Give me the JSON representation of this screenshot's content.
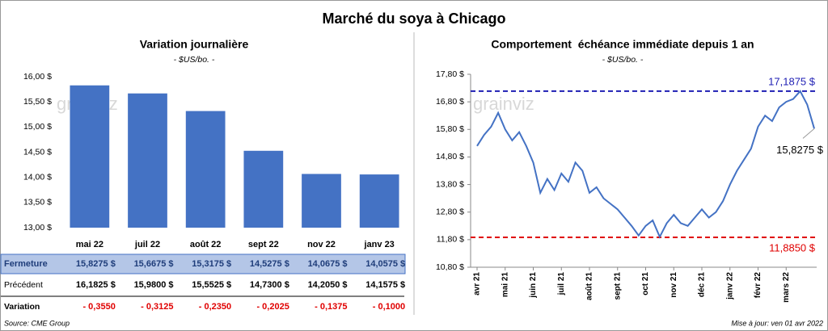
{
  "title": "Marché du soya à Chicago",
  "source": "Source: CME Group",
  "updated": "Mise à jour: ven 01 avr 2022",
  "watermark": "grainviz",
  "chart_data": [
    {
      "type": "bar",
      "title": "Variation journalière",
      "subtitle": "- $US/bo. -",
      "categories": [
        "mai 22",
        "juil 22",
        "août 22",
        "sept 22",
        "nov 22",
        "janv 23"
      ],
      "series": [
        {
          "name": "Fermeture",
          "color": "#4472c4",
          "values": [
            15.8275,
            15.6675,
            15.3175,
            14.5275,
            14.0675,
            14.0575
          ],
          "value_labels": [
            "15,8275 $",
            "15,6675 $",
            "15,3175 $",
            "14,5275 $",
            "14,0675 $",
            "14,0575 $"
          ]
        }
      ],
      "ylim": [
        13,
        16
      ],
      "yticks": [
        {
          "value": 13,
          "label": "13,00 $"
        },
        {
          "value": 13.5,
          "label": "13,50 $"
        },
        {
          "value": 14,
          "label": "14,00 $"
        },
        {
          "value": 14.5,
          "label": "14,50 $"
        },
        {
          "value": 15,
          "label": "15,00 $"
        },
        {
          "value": 15.5,
          "label": "15,50 $"
        },
        {
          "value": 16,
          "label": "16,00 $"
        }
      ],
      "table": [
        {
          "name": "Précédent",
          "color": "#000000",
          "cells": [
            "16,1825 $",
            "15,9800 $",
            "15,5525 $",
            "14,7300 $",
            "14,2050 $",
            "14,1575 $"
          ]
        },
        {
          "name": "Variation",
          "color": "#e00000",
          "cells": [
            "- 0,3550",
            "- 0,3125",
            "- 0,2350",
            "- 0,2025",
            "- 0,1375",
            "- 0,1000"
          ]
        }
      ]
    },
    {
      "type": "line",
      "title": "Comportement  échéance immédiate depuis 1 an",
      "subtitle": "- $US/bo. -",
      "color": "#4472c4",
      "categories": [
        "avr 21",
        null,
        null,
        null,
        "mai 21",
        null,
        null,
        null,
        "juin 21",
        null,
        null,
        null,
        "juil 21",
        null,
        null,
        null,
        "août 21",
        null,
        null,
        null,
        "sept 21",
        null,
        null,
        null,
        "oct 21",
        null,
        null,
        null,
        "nov 21",
        null,
        null,
        null,
        "déc 21",
        null,
        null,
        null,
        "janv 22",
        null,
        null,
        null,
        "févr 22",
        null,
        null,
        null,
        "mars 22",
        null,
        null,
        null,
        null
      ],
      "values": [
        15.2,
        15.6,
        15.9,
        16.4,
        15.8,
        15.4,
        15.7,
        15.2,
        14.6,
        13.5,
        14.0,
        13.6,
        14.2,
        13.9,
        14.6,
        14.3,
        13.5,
        13.7,
        13.3,
        13.1,
        12.9,
        12.6,
        12.3,
        11.95,
        12.3,
        12.5,
        11.9,
        12.4,
        12.7,
        12.4,
        12.3,
        12.6,
        12.9,
        12.6,
        12.8,
        13.2,
        13.8,
        14.3,
        14.7,
        15.1,
        15.9,
        16.3,
        16.1,
        16.6,
        16.8,
        16.9,
        17.1875,
        16.7,
        15.8275
      ],
      "end_label": "15,8275 $",
      "reference_lines": [
        {
          "value": 17.1875,
          "label": "17,1875 $",
          "color": "#1f1fb4"
        },
        {
          "value": 11.885,
          "label": "11,8850 $",
          "color": "#e00000"
        }
      ],
      "ylim": [
        10.8,
        17.8
      ],
      "yticks": [
        {
          "value": 10.8,
          "label": "10,80 $"
        },
        {
          "value": 11.8,
          "label": "11,80 $"
        },
        {
          "value": 12.8,
          "label": "12,80 $"
        },
        {
          "value": 13.8,
          "label": "13,80 $"
        },
        {
          "value": 14.8,
          "label": "14,80 $"
        },
        {
          "value": 15.8,
          "label": "15,80 $"
        },
        {
          "value": 16.8,
          "label": "16,80 $"
        },
        {
          "value": 17.8,
          "label": "17,80 $"
        }
      ]
    }
  ]
}
